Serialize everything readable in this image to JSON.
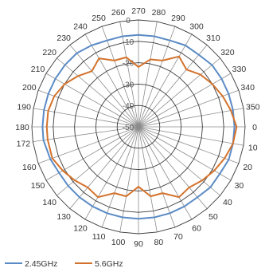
{
  "chart_data": {
    "type": "radar",
    "angles": [
      0,
      10,
      20,
      30,
      40,
      50,
      60,
      70,
      80,
      90,
      100,
      110,
      120,
      130,
      140,
      150,
      160,
      172,
      180,
      190,
      200,
      210,
      220,
      230,
      240,
      250,
      260,
      270,
      280,
      290,
      300,
      310,
      320,
      330,
      340,
      350
    ],
    "angle_labels": [
      "0",
      "10",
      "20",
      "30",
      "40",
      "50",
      "60",
      "70",
      "80",
      "90",
      "100",
      "110",
      "120",
      "130",
      "140",
      "150",
      "160",
      "172",
      "180",
      "190",
      "200",
      "210",
      "220",
      "230",
      "240",
      "250",
      "260",
      "270",
      "280",
      "290",
      "300",
      "310",
      "320",
      "330",
      "340",
      "350"
    ],
    "radial_ticks": [
      0,
      -10,
      -20,
      -30,
      -40,
      -50
    ],
    "radial_tick_labels": [
      "0",
      "-10",
      "-20",
      "-30",
      "-40",
      "-50"
    ],
    "rlim": [
      -50,
      0
    ],
    "grid": true,
    "legend_position": "bottom-left",
    "series": [
      {
        "name": "2.45GHz",
        "color": "#5B8BC5",
        "values": [
          -5,
          -5,
          -5,
          -6,
          -6,
          -7,
          -7,
          -7,
          -7,
          -7,
          -7,
          -7,
          -7,
          -7,
          -7,
          -7,
          -6,
          -5,
          -5,
          -5,
          -5,
          -5,
          -5,
          -5,
          -6,
          -7,
          -7,
          -7,
          -7,
          -7,
          -6,
          -6,
          -5,
          -5,
          -5,
          -5
        ]
      },
      {
        "name": "5.6GHz",
        "color": "#D3722C",
        "values": [
          -4,
          -5,
          -7,
          -9,
          -11,
          -13,
          -12,
          -17,
          -17,
          -22,
          -17,
          -17,
          -12,
          -13,
          -11,
          -9,
          -7,
          -7,
          -7,
          -7,
          -8,
          -10,
          -13,
          -16,
          -13,
          -17,
          -17,
          -22,
          -18,
          -17,
          -12,
          -15,
          -12,
          -10,
          -8,
          -6
        ]
      }
    ]
  }
}
